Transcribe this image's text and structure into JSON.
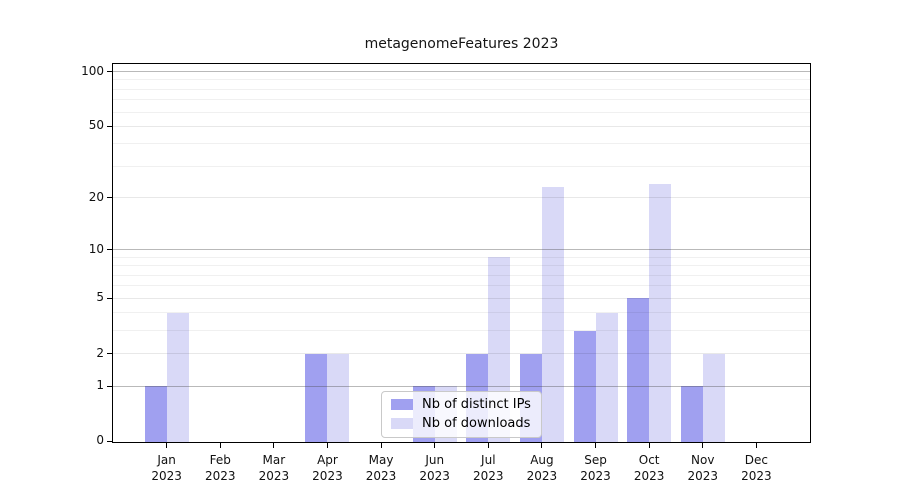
{
  "chart_data": {
    "type": "bar",
    "title": "metagenomeFeatures 2023",
    "categories": [
      "Jan",
      "Feb",
      "Mar",
      "Apr",
      "May",
      "Jun",
      "Jul",
      "Aug",
      "Sep",
      "Oct",
      "Nov",
      "Dec"
    ],
    "category_year": "2023",
    "series": [
      {
        "name": "Nb of distinct IPs",
        "color": "#a0a0f0",
        "values": [
          1,
          0,
          0,
          2,
          0,
          1,
          2,
          2,
          3,
          5,
          1,
          0
        ]
      },
      {
        "name": "Nb of downloads",
        "color": "#d9d9f7",
        "values": [
          4,
          0,
          0,
          2,
          0,
          1,
          9,
          23,
          4,
          24,
          2,
          0
        ]
      }
    ],
    "yaxis": {
      "scale": "log1p",
      "ticks": [
        0,
        1,
        2,
        5,
        10,
        20,
        50,
        100
      ],
      "minor_gridlines": [
        3,
        4,
        6,
        7,
        8,
        9,
        30,
        40,
        60,
        70,
        80,
        90
      ],
      "pow10_gridlines": [
        1,
        10,
        100
      ],
      "top_value": 110
    },
    "xlabel": "",
    "ylabel": "",
    "grid": true,
    "legend_position": "inside-bottom-center",
    "plot_border_color": "#000000",
    "background_color": "#ffffff"
  }
}
